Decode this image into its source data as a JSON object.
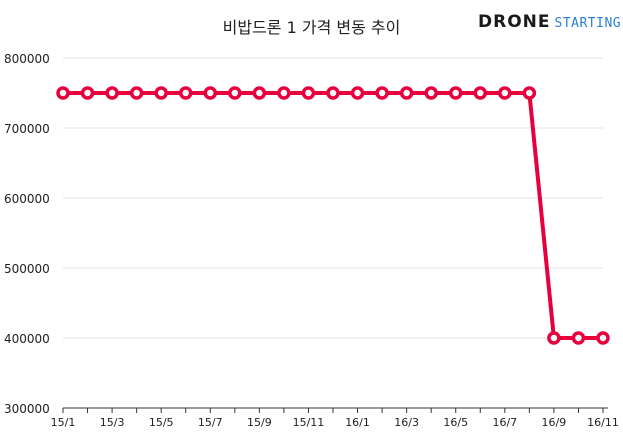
{
  "logo": {
    "word1": "DRONE",
    "word2": "STARTING!"
  },
  "chart_data": {
    "type": "line",
    "title": "비밥드론 1 가격 변동 추이",
    "xlabel": "",
    "ylabel": "",
    "x": [
      "15/1",
      "15/2",
      "15/3",
      "15/4",
      "15/5",
      "15/6",
      "15/7",
      "15/8",
      "15/9",
      "15/10",
      "15/11",
      "15/12",
      "16/1",
      "16/2",
      "16/3",
      "16/4",
      "16/5",
      "16/6",
      "16/7",
      "16/8",
      "16/9",
      "16/10",
      "16/11"
    ],
    "x_tick_labels": [
      "15/1",
      "15/3",
      "15/5",
      "15/7",
      "15/9",
      "15/11",
      "16/1",
      "16/3",
      "16/5",
      "16/7",
      "16/9",
      "16/11"
    ],
    "series": [
      {
        "values": [
          750000,
          750000,
          750000,
          750000,
          750000,
          750000,
          750000,
          750000,
          750000,
          750000,
          750000,
          750000,
          750000,
          750000,
          750000,
          750000,
          750000,
          750000,
          750000,
          750000,
          400000,
          400000,
          400000
        ]
      }
    ],
    "ylim": [
      300000,
      800000
    ],
    "y_ticks": [
      300000,
      400000,
      500000,
      600000,
      700000,
      800000
    ],
    "y_tick_labels": [
      "300000",
      "400000",
      "500000",
      "600000",
      "700000",
      "800000"
    ],
    "grid": true,
    "legend": "none",
    "colors": {
      "line": "#e8003d",
      "marker_fill": "#ffffff",
      "grid": "#e6e6e6",
      "axis": "#333333",
      "text": "#222222"
    }
  }
}
